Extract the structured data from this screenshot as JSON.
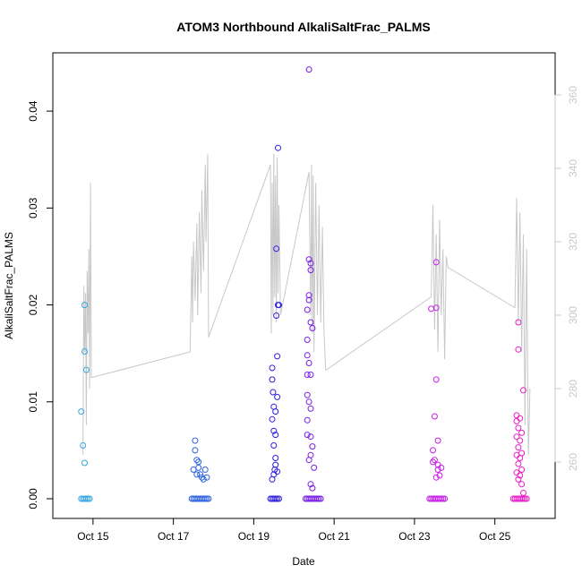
{
  "chart_data": {
    "type": "scatter",
    "title": "ATOM3 Northbound AlkaliSaltFrac_PALMS",
    "xlabel": "Date",
    "ylabel": "AlkaliSaltFrac_PALMS",
    "xlim": [
      "2016-10-14 00:00",
      "2016-10-26 12:00"
    ],
    "ylim": [
      0,
      0.045
    ],
    "y2lim": [
      250,
      370
    ],
    "grid": false,
    "legend": "none",
    "x_ticks": [
      {
        "date": "2016-10-15",
        "label": "Oct 15"
      },
      {
        "date": "2016-10-17",
        "label": "Oct 17"
      },
      {
        "date": "2016-10-19",
        "label": "Oct 19"
      },
      {
        "date": "2016-10-21",
        "label": "Oct 21"
      },
      {
        "date": "2016-10-23",
        "label": "Oct 23"
      },
      {
        "date": "2016-10-25",
        "label": "Oct 25"
      }
    ],
    "y_ticks": [
      {
        "value": 0.0,
        "label": "0.00"
      },
      {
        "value": 0.01,
        "label": "0.01"
      },
      {
        "value": 0.02,
        "label": "0.02"
      },
      {
        "value": 0.03,
        "label": "0.03"
      },
      {
        "value": 0.04,
        "label": "0.04"
      }
    ],
    "y2_ticks": [
      {
        "value": 260,
        "label": "260"
      },
      {
        "value": 280,
        "label": "280"
      },
      {
        "value": 300,
        "label": "300"
      },
      {
        "value": 320,
        "label": "320"
      },
      {
        "value": 340,
        "label": "340"
      },
      {
        "value": 360,
        "label": "360"
      }
    ],
    "secondary_line": {
      "color": "#c8c8c8",
      "points": [
        [
          "2016-10-14 18:00",
          262
        ],
        [
          "2016-10-14 18:30",
          308
        ],
        [
          "2016-10-14 19:00",
          290
        ],
        [
          "2016-10-14 19:30",
          306
        ],
        [
          "2016-10-14 20:00",
          270
        ],
        [
          "2016-10-14 20:30",
          312
        ],
        [
          "2016-10-14 21:00",
          295
        ],
        [
          "2016-10-14 21:30",
          318
        ],
        [
          "2016-10-14 22:00",
          280
        ],
        [
          "2016-10-14 22:30",
          336
        ],
        [
          "2016-10-14 23:00",
          283
        ],
        [
          "2016-10-17 10:00",
          290
        ],
        [
          "2016-10-17 11:00",
          316
        ],
        [
          "2016-10-17 11:30",
          298
        ],
        [
          "2016-10-17 12:00",
          320
        ],
        [
          "2016-10-17 13:00",
          304
        ],
        [
          "2016-10-17 14:00",
          325
        ],
        [
          "2016-10-17 14:30",
          300
        ],
        [
          "2016-10-17 15:30",
          328
        ],
        [
          "2016-10-17 16:30",
          306
        ],
        [
          "2016-10-17 17:00",
          334
        ],
        [
          "2016-10-17 18:00",
          312
        ],
        [
          "2016-10-17 19:00",
          341
        ],
        [
          "2016-10-17 19:30",
          320
        ],
        [
          "2016-10-17 20:30",
          344
        ],
        [
          "2016-10-17 21:00",
          294
        ],
        [
          "2016-10-19 10:00",
          341
        ],
        [
          "2016-10-19 10:30",
          295
        ],
        [
          "2016-10-19 11:00",
          336
        ],
        [
          "2016-10-19 11:30",
          300
        ],
        [
          "2016-10-19 12:00",
          344
        ],
        [
          "2016-10-19 12:30",
          305
        ],
        [
          "2016-10-19 13:00",
          338
        ],
        [
          "2016-10-19 13:30",
          298
        ],
        [
          "2016-10-19 14:00",
          343
        ],
        [
          "2016-10-19 14:30",
          306
        ],
        [
          "2016-10-19 15:00",
          330
        ],
        [
          "2016-10-19 16:00",
          300
        ],
        [
          "2016-10-20 09:00",
          339
        ],
        [
          "2016-10-20 10:00",
          300
        ],
        [
          "2016-10-20 10:30",
          341
        ],
        [
          "2016-10-20 11:00",
          295
        ],
        [
          "2016-10-20 11:30",
          338
        ],
        [
          "2016-10-20 12:00",
          290
        ],
        [
          "2016-10-20 13:00",
          336
        ],
        [
          "2016-10-20 14:00",
          300
        ],
        [
          "2016-10-20 15:00",
          330
        ],
        [
          "2016-10-20 16:00",
          298
        ],
        [
          "2016-10-20 17:00",
          324
        ],
        [
          "2016-10-20 18:00",
          295
        ],
        [
          "2016-10-20 19:00",
          285
        ],
        [
          "2016-10-23 10:00",
          305
        ],
        [
          "2016-10-23 11:00",
          330
        ],
        [
          "2016-10-23 12:00",
          296
        ],
        [
          "2016-10-23 13:00",
          322
        ],
        [
          "2016-10-23 14:00",
          290
        ],
        [
          "2016-10-23 15:00",
          326
        ],
        [
          "2016-10-23 16:00",
          300
        ],
        [
          "2016-10-23 17:00",
          318
        ],
        [
          "2016-10-23 18:00",
          288
        ],
        [
          "2016-10-23 19:00",
          316
        ],
        [
          "2016-10-23 20:00",
          313
        ],
        [
          "2016-10-25 12:00",
          302
        ],
        [
          "2016-10-25 13:00",
          332
        ],
        [
          "2016-10-25 14:00",
          298
        ],
        [
          "2016-10-25 15:00",
          328
        ],
        [
          "2016-10-25 16:00",
          290
        ],
        [
          "2016-10-25 17:00",
          322
        ],
        [
          "2016-10-25 18:00",
          270
        ],
        [
          "2016-10-25 19:00",
          318
        ],
        [
          "2016-10-25 20:00",
          262
        ],
        [
          "2016-10-25 21:00",
          280
        ]
      ]
    },
    "series": [
      {
        "color": "#35a7e0",
        "points": [
          [
            "2016-10-14 17:00",
            0.009
          ],
          [
            "2016-10-14 18:00",
            0.0055
          ],
          [
            "2016-10-14 19:00",
            0.0037
          ],
          [
            "2016-10-14 19:00",
            0.0152
          ],
          [
            "2016-10-14 19:00",
            0.02
          ],
          [
            "2016-10-14 20:00",
            0.0133
          ],
          [
            "2016-10-14 17:00",
            0
          ],
          [
            "2016-10-14 18:00",
            0
          ],
          [
            "2016-10-14 19:00",
            0
          ],
          [
            "2016-10-14 20:00",
            0
          ],
          [
            "2016-10-14 21:00",
            0
          ],
          [
            "2016-10-14 22:00",
            0
          ]
        ]
      },
      {
        "color": "#2e63e0",
        "points": [
          [
            "2016-10-17 12:00",
            0.003
          ],
          [
            "2016-10-17 13:00",
            0.006
          ],
          [
            "2016-10-17 13:00",
            0.005
          ],
          [
            "2016-10-17 14:00",
            0.004
          ],
          [
            "2016-10-17 15:00",
            0.0038
          ],
          [
            "2016-10-17 15:00",
            0.0032
          ],
          [
            "2016-10-17 16:00",
            0.0025
          ],
          [
            "2016-10-17 17:00",
            0.0022
          ],
          [
            "2016-10-17 18:00",
            0.002
          ],
          [
            "2016-10-17 19:00",
            0.003
          ],
          [
            "2016-10-17 14:00",
            0.0025
          ],
          [
            "2016-10-17 20:00",
            0.0022
          ],
          [
            "2016-10-17 11:00",
            0
          ],
          [
            "2016-10-17 12:00",
            0
          ],
          [
            "2016-10-17 13:00",
            0
          ],
          [
            "2016-10-17 14:00",
            0
          ],
          [
            "2016-10-17 15:00",
            0
          ],
          [
            "2016-10-17 16:00",
            0
          ],
          [
            "2016-10-17 17:00",
            0
          ],
          [
            "2016-10-17 18:00",
            0
          ],
          [
            "2016-10-17 19:00",
            0
          ],
          [
            "2016-10-17 20:00",
            0
          ],
          [
            "2016-10-17 21:00",
            0
          ]
        ]
      },
      {
        "color": "#2e1ee0",
        "points": [
          [
            "2016-10-19 11:00",
            0.0135
          ],
          [
            "2016-10-19 11:00",
            0.0123
          ],
          [
            "2016-10-19 11:00",
            0.0082
          ],
          [
            "2016-10-19 11:30",
            0.011
          ],
          [
            "2016-10-19 12:00",
            0.0095
          ],
          [
            "2016-10-19 12:00",
            0.007
          ],
          [
            "2016-10-19 12:00",
            0.0055
          ],
          [
            "2016-10-19 13:00",
            0.009
          ],
          [
            "2016-10-19 13:00",
            0.0066
          ],
          [
            "2016-10-19 13:00",
            0.0042
          ],
          [
            "2016-10-19 13:00",
            0.0035
          ],
          [
            "2016-10-19 12:30",
            0.003
          ],
          [
            "2016-10-19 12:00",
            0.0025
          ],
          [
            "2016-10-19 11:00",
            0.002
          ],
          [
            "2016-10-19 14:00",
            0.0028
          ],
          [
            "2016-10-19 14:00",
            0.0105
          ],
          [
            "2016-10-19 14:00",
            0.0147
          ],
          [
            "2016-10-19 14:30",
            0.02
          ],
          [
            "2016-10-19 13:30",
            0.0189
          ],
          [
            "2016-10-19 13:30",
            0.0258
          ],
          [
            "2016-10-19 14:30",
            0.0362
          ],
          [
            "2016-10-19 15:00",
            0.02
          ],
          [
            "2016-10-19 10:00",
            0
          ],
          [
            "2016-10-19 11:00",
            0
          ],
          [
            "2016-10-19 12:00",
            0
          ],
          [
            "2016-10-19 13:00",
            0
          ],
          [
            "2016-10-19 14:00",
            0
          ],
          [
            "2016-10-19 15:00",
            0
          ]
        ]
      },
      {
        "color": "#7a1ee8",
        "points": [
          [
            "2016-10-20 09:00",
            0.0443
          ],
          [
            "2016-10-20 09:00",
            0.0247
          ],
          [
            "2016-10-20 10:00",
            0.0243
          ],
          [
            "2016-10-20 10:00",
            0.0236
          ],
          [
            "2016-10-20 09:00",
            0.021
          ],
          [
            "2016-10-20 09:00",
            0.0205
          ],
          [
            "2016-10-20 08:00",
            0.0195
          ],
          [
            "2016-10-20 10:00",
            0.0182
          ],
          [
            "2016-10-20 11:00",
            0.0176
          ],
          [
            "2016-10-20 08:00",
            0.0164
          ],
          [
            "2016-10-20 08:00",
            0.0148
          ],
          [
            "2016-10-20 09:00",
            0.014
          ],
          [
            "2016-10-20 08:00",
            0.0128
          ],
          [
            "2016-10-20 10:00",
            0.0128
          ],
          [
            "2016-10-20 08:00",
            0.0107
          ],
          [
            "2016-10-20 09:00",
            0.01
          ],
          [
            "2016-10-20 10:00",
            0.0093
          ],
          [
            "2016-10-20 08:00",
            0.0081
          ],
          [
            "2016-10-20 08:00",
            0.0066
          ],
          [
            "2016-10-20 10:00",
            0.0064
          ],
          [
            "2016-10-20 11:00",
            0.0054
          ],
          [
            "2016-10-20 10:00",
            0.0045
          ],
          [
            "2016-10-20 09:00",
            0.004
          ],
          [
            "2016-10-20 12:00",
            0.0032
          ],
          [
            "2016-10-20 10:00",
            0.0015
          ],
          [
            "2016-10-20 11:00",
            0.0011
          ],
          [
            "2016-10-20 07:00",
            0
          ],
          [
            "2016-10-20 08:00",
            0
          ],
          [
            "2016-10-20 09:00",
            0
          ],
          [
            "2016-10-20 10:00",
            0
          ],
          [
            "2016-10-20 11:00",
            0
          ],
          [
            "2016-10-20 12:00",
            0
          ],
          [
            "2016-10-20 13:00",
            0
          ],
          [
            "2016-10-20 14:00",
            0
          ],
          [
            "2016-10-20 15:00",
            0
          ],
          [
            "2016-10-20 16:00",
            0
          ]
        ]
      },
      {
        "color": "#c81ee8",
        "points": [
          [
            "2016-10-23 10:00",
            0.0196
          ],
          [
            "2016-10-23 13:00",
            0.0244
          ],
          [
            "2016-10-23 13:00",
            0.0197
          ],
          [
            "2016-10-23 13:00",
            0.0123
          ],
          [
            "2016-10-23 12:00",
            0.0085
          ],
          [
            "2016-10-23 14:00",
            0.006
          ],
          [
            "2016-10-23 11:00",
            0.005
          ],
          [
            "2016-10-23 12:00",
            0.004
          ],
          [
            "2016-10-23 11:00",
            0.0038
          ],
          [
            "2016-10-23 14:00",
            0.0035
          ],
          [
            "2016-10-23 14:00",
            0.003
          ],
          [
            "2016-10-23 15:00",
            0.0024
          ],
          [
            "2016-10-23 13:00",
            0.0022
          ],
          [
            "2016-10-23 16:00",
            0.0032
          ],
          [
            "2016-10-23 09:00",
            0
          ],
          [
            "2016-10-23 10:00",
            0
          ],
          [
            "2016-10-23 11:00",
            0
          ],
          [
            "2016-10-23 12:00",
            0
          ],
          [
            "2016-10-23 13:00",
            0
          ],
          [
            "2016-10-23 14:00",
            0
          ],
          [
            "2016-10-23 15:00",
            0
          ],
          [
            "2016-10-23 16:00",
            0
          ],
          [
            "2016-10-23 17:00",
            0
          ],
          [
            "2016-10-23 18:00",
            0
          ]
        ]
      },
      {
        "color": "#e81ec8",
        "points": [
          [
            "2016-10-25 14:00",
            0.0182
          ],
          [
            "2016-10-25 14:00",
            0.0154
          ],
          [
            "2016-10-25 17:00",
            0.0112
          ],
          [
            "2016-10-25 13:00",
            0.0086
          ],
          [
            "2016-10-25 13:00",
            0.008
          ],
          [
            "2016-10-25 15:00",
            0.0083
          ],
          [
            "2016-10-25 14:00",
            0.0073
          ],
          [
            "2016-10-25 16:00",
            0.0068
          ],
          [
            "2016-10-25 13:00",
            0.0064
          ],
          [
            "2016-10-25 15:00",
            0.006
          ],
          [
            "2016-10-25 14:00",
            0.0053
          ],
          [
            "2016-10-25 16:00",
            0.0047
          ],
          [
            "2016-10-25 13:00",
            0.0045
          ],
          [
            "2016-10-25 15:00",
            0.0042
          ],
          [
            "2016-10-25 14:00",
            0.0036
          ],
          [
            "2016-10-25 16:00",
            0.003
          ],
          [
            "2016-10-25 13:00",
            0.0027
          ],
          [
            "2016-10-25 15:00",
            0.0024
          ],
          [
            "2016-10-25 14:00",
            0.002
          ],
          [
            "2016-10-25 16:00",
            0.0015
          ],
          [
            "2016-10-25 17:00",
            0.0006
          ],
          [
            "2016-10-25 11:00",
            0
          ],
          [
            "2016-10-25 12:00",
            0
          ],
          [
            "2016-10-25 13:00",
            0
          ],
          [
            "2016-10-25 14:00",
            0
          ],
          [
            "2016-10-25 15:00",
            0
          ],
          [
            "2016-10-25 16:00",
            0
          ],
          [
            "2016-10-25 17:00",
            0
          ],
          [
            "2016-10-25 18:00",
            0
          ],
          [
            "2016-10-25 19:00",
            0
          ]
        ]
      }
    ]
  }
}
